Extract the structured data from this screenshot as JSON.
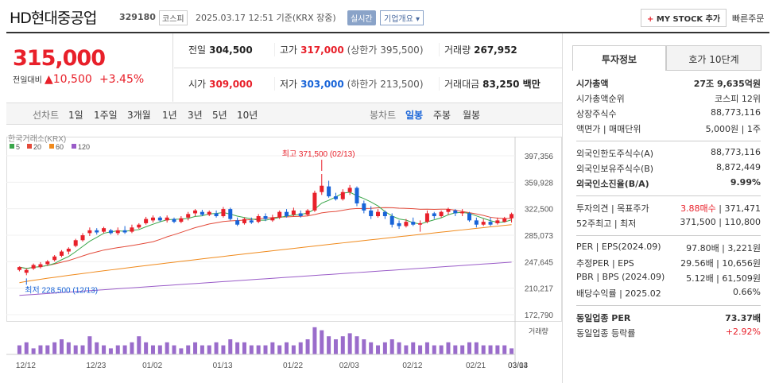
{
  "header": {
    "name": "HD현대중공업",
    "code": "329180",
    "market": "코스피",
    "timestamp": "2025.03.17 12:51 기준(KRX 장중)",
    "realtime": "실시간",
    "company_overview": "기업개요",
    "mystock": "MY STOCK 추가",
    "quick_order": "빠른주문"
  },
  "price": {
    "current": "315,000",
    "label": "전일대비",
    "change": "▲10,500",
    "rate": "+3.45%"
  },
  "stats": {
    "prev_label": "전일",
    "prev": "304,500",
    "high_label": "고가",
    "high": "317,000",
    "upper": "(상한가 395,500)",
    "vol_label": "거래량",
    "vol": "267,952",
    "open_label": "시가",
    "open": "309,000",
    "low_label": "저가",
    "low": "303,000",
    "lower": "(하한가 213,500)",
    "amt_label": "거래대금",
    "amt": "83,250 백만"
  },
  "periods": {
    "line_label": "선차트",
    "items": [
      "1일",
      "1주일",
      "3개월",
      "1년",
      "3년",
      "5년",
      "10년"
    ],
    "candle_label": "봉차트",
    "candle_items": [
      "일봉",
      "주봉",
      "월봉"
    ],
    "active_candle": "일봉"
  },
  "chart_data": {
    "type": "candlestick",
    "source": "한국거래소(KRX)",
    "legend": [
      {
        "name": "5",
        "color": "#3aa64a"
      },
      {
        "name": "20",
        "color": "#e34a3a"
      },
      {
        "name": "60",
        "color": "#f08a1c"
      },
      {
        "name": "120",
        "color": "#9a5cc8"
      }
    ],
    "y_ticks": [
      "397,356",
      "359,928",
      "322,500",
      "285,073",
      "247,645",
      "210,217",
      "172,790"
    ],
    "ylim": [
      172790,
      397356
    ],
    "x_ticks": [
      "12/12",
      "12/23",
      "01/02",
      "01/13",
      "01/22",
      "02/03",
      "02/12",
      "02/21",
      "03/04",
      "03/13"
    ],
    "high_note": "최고 371,500 (02/13)",
    "low_note": "최저 228,500 (12/13)",
    "volume_label": "거래량",
    "up_color": "#e8202a",
    "down_color": "#1864d8",
    "candles": [
      [
        236000,
        240000,
        234000,
        241000
      ],
      [
        232000,
        236000,
        228500,
        238000
      ],
      [
        238000,
        243000,
        236000,
        245000
      ],
      [
        240000,
        244000,
        238000,
        247000
      ],
      [
        244000,
        248000,
        242000,
        250000
      ],
      [
        250000,
        255000,
        248000,
        257000
      ],
      [
        256000,
        262000,
        254000,
        264000
      ],
      [
        262000,
        266000,
        258000,
        268000
      ],
      [
        270000,
        278000,
        268000,
        280000
      ],
      [
        278000,
        285000,
        276000,
        288000
      ],
      [
        288000,
        292000,
        284000,
        296000
      ],
      [
        292000,
        289000,
        286000,
        295000
      ],
      [
        290000,
        295000,
        288000,
        297000
      ],
      [
        292000,
        288000,
        286000,
        294000
      ],
      [
        288000,
        292000,
        285000,
        296000
      ],
      [
        292000,
        289000,
        287000,
        298000
      ],
      [
        290000,
        296000,
        288000,
        300000
      ],
      [
        296000,
        300000,
        294000,
        302000
      ],
      [
        302000,
        308000,
        300000,
        311000
      ],
      [
        306000,
        310000,
        303000,
        313000
      ],
      [
        310000,
        306000,
        304000,
        312000
      ],
      [
        306000,
        310000,
        303000,
        313000
      ],
      [
        308000,
        304000,
        302000,
        310000
      ],
      [
        304000,
        309000,
        302000,
        312000
      ],
      [
        310000,
        315000,
        306000,
        318000
      ],
      [
        316000,
        320000,
        312000,
        322000
      ],
      [
        318000,
        314000,
        312000,
        321000
      ],
      [
        314000,
        318000,
        312000,
        320000
      ],
      [
        316000,
        312000,
        310000,
        320000
      ],
      [
        312000,
        322000,
        310000,
        325000
      ],
      [
        322000,
        308000,
        306000,
        324000
      ],
      [
        306000,
        300000,
        298000,
        310000
      ],
      [
        302000,
        308000,
        300000,
        310000
      ],
      [
        306000,
        303000,
        301000,
        310000
      ],
      [
        304000,
        312000,
        302000,
        315000
      ],
      [
        312000,
        308000,
        305000,
        316000
      ],
      [
        306000,
        310000,
        304000,
        314000
      ],
      [
        310000,
        318000,
        308000,
        320000
      ],
      [
        318000,
        312000,
        310000,
        322000
      ],
      [
        314000,
        320000,
        312000,
        324000
      ],
      [
        316000,
        312000,
        310000,
        320000
      ],
      [
        314000,
        320000,
        312000,
        322000
      ],
      [
        320000,
        345000,
        318000,
        348000
      ],
      [
        346000,
        355000,
        342000,
        371500
      ],
      [
        354000,
        340000,
        338000,
        362000
      ],
      [
        340000,
        336000,
        334000,
        345000
      ],
      [
        336000,
        346000,
        334000,
        350000
      ],
      [
        346000,
        352000,
        342000,
        356000
      ],
      [
        352000,
        330000,
        326000,
        354000
      ],
      [
        330000,
        320000,
        316000,
        334000
      ],
      [
        320000,
        312000,
        308000,
        326000
      ],
      [
        312000,
        318000,
        310000,
        322000
      ],
      [
        318000,
        312000,
        308000,
        320000
      ],
      [
        312000,
        300000,
        296000,
        316000
      ],
      [
        302000,
        298000,
        294000,
        306000
      ],
      [
        298000,
        304000,
        296000,
        308000
      ],
      [
        304000,
        300000,
        298000,
        310000
      ],
      [
        300000,
        302000,
        290000,
        306000
      ],
      [
        304000,
        316000,
        302000,
        320000
      ],
      [
        316000,
        312000,
        308000,
        318000
      ],
      [
        312000,
        318000,
        310000,
        320000
      ],
      [
        318000,
        322000,
        314000,
        324000
      ],
      [
        320000,
        316000,
        312000,
        322000
      ],
      [
        316000,
        318000,
        312000,
        322000
      ],
      [
        316000,
        306000,
        304000,
        318000
      ],
      [
        306000,
        300000,
        296000,
        310000
      ],
      [
        300000,
        304000,
        298000,
        308000
      ],
      [
        304000,
        300000,
        298000,
        310000
      ],
      [
        302000,
        306000,
        300000,
        310000
      ],
      [
        304000,
        309000,
        303000,
        311000
      ],
      [
        309000,
        315000,
        303000,
        317000
      ]
    ],
    "volume": [
      3,
      4,
      2,
      3,
      3,
      4,
      5,
      4,
      3,
      3,
      6,
      4,
      3,
      2,
      3,
      3,
      4,
      6,
      4,
      3,
      3,
      4,
      3,
      2,
      3,
      4,
      3,
      3,
      4,
      3,
      5,
      4,
      4,
      3,
      3,
      3,
      4,
      3,
      4,
      3,
      4,
      5,
      9,
      8,
      6,
      5,
      6,
      7,
      6,
      5,
      4,
      3,
      4,
      5,
      4,
      3,
      4,
      3,
      4,
      3,
      3,
      4,
      3,
      3,
      4,
      4,
      3,
      3,
      3,
      3,
      2
    ]
  },
  "right": {
    "tab_active": "투자정보",
    "tab_other": "호가 10단계",
    "rows1": [
      {
        "k": "시가총액",
        "v": "27조 9,635억원"
      },
      {
        "k": "시가총액순위",
        "v": "코스피 12위"
      },
      {
        "k": "상장주식수",
        "v": "88,773,116"
      },
      {
        "k": "액면가 | 매매단위",
        "v": "5,000원 | 1주"
      }
    ],
    "rows2": [
      {
        "k": "외국인한도주식수(A)",
        "v": "88,773,116"
      },
      {
        "k": "외국인보유주식수(B)",
        "v": "8,872,449"
      },
      {
        "k": "외국인소진율(B/A)",
        "v": "9.99%"
      }
    ],
    "rows3": [
      {
        "k": "투자의견 | 목표주가",
        "v1": "3.88매수",
        "v2": "371,471"
      },
      {
        "k": "52주최고 | 최저",
        "v": "371,500 | 110,800"
      }
    ],
    "rows4": [
      {
        "k": "PER | EPS(2024.09)",
        "v": "97.80배 | 3,221원"
      },
      {
        "k": "추정PER | EPS",
        "v": "29.56배 | 10,656원"
      },
      {
        "k": "PBR | BPS (2024.09)",
        "v": "5.12배 | 61,509원"
      },
      {
        "k": "배당수익률 | 2025.02",
        "v": "0.66%"
      }
    ],
    "rows5": [
      {
        "k": "동일업종 PER",
        "v": "73.37배"
      },
      {
        "k": "동일업종 등락률",
        "v": "+2.92%"
      }
    ]
  }
}
